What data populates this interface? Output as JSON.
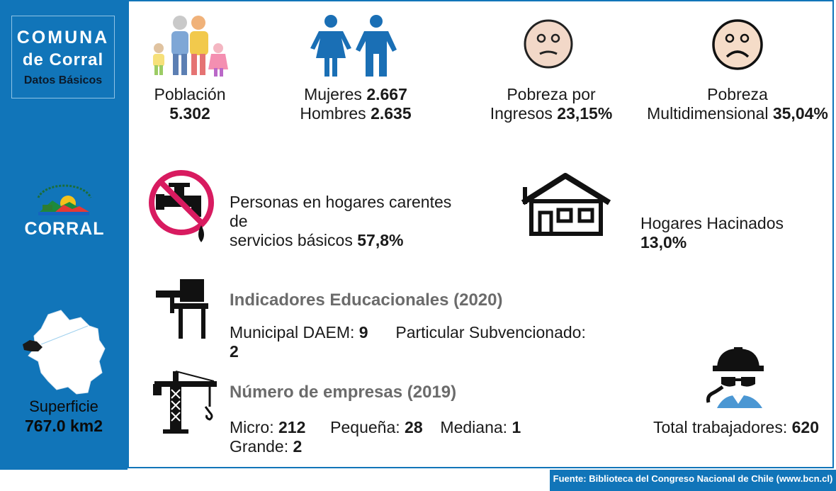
{
  "sidebar": {
    "title_line1": "COMUNA",
    "title_line2": "de Corral",
    "title_line3": "Datos Básicos",
    "logo_text": "CORRAL",
    "surface_label": "Superficie",
    "surface_value": "767.0 km2"
  },
  "stats": {
    "poblacion": {
      "label": "Población",
      "value": "5.302"
    },
    "mujeres": {
      "label": "Mujeres",
      "value": "2.667"
    },
    "hombres": {
      "label": "Hombres",
      "value": "2.635"
    },
    "pobreza_ingresos": {
      "label_line1": "Pobreza por",
      "label_line2": "Ingresos",
      "value": "23,15%"
    },
    "pobreza_multi": {
      "label_line1": "Pobreza",
      "label_line2": "Multidimensional",
      "value": "35,04%"
    },
    "servicios": {
      "label_line1": "Personas en hogares carentes de",
      "label_line2": "servicios básicos",
      "value": "57,8%"
    },
    "hacinados": {
      "label": "Hogares Hacinados",
      "value": "13,0%"
    }
  },
  "education": {
    "title": "Indicadores Educacionales (2020)",
    "municipal_label": "Municipal DAEM:",
    "municipal_value": "9",
    "particular_label": "Particular Subvencionado:",
    "particular_value": "2"
  },
  "companies": {
    "title": "Número de empresas (2019)",
    "micro_label": "Micro:",
    "micro_value": "212",
    "pequena_label": "Pequeña:",
    "pequena_value": "28",
    "mediana_label": "Mediana:",
    "mediana_value": "1",
    "grande_label": "Grande:",
    "grande_value": "2"
  },
  "workers": {
    "label": "Total trabajadores:",
    "value": "620"
  },
  "footer": {
    "source": "Fuente: Biblioteca del Congreso Nacional de Chile (www.bcn.cl)"
  },
  "colors": {
    "accent_blue": "#1175b9",
    "no_sign_red": "#d81b60",
    "gray_title": "#6b6b6b"
  },
  "icons": [
    "family-icon",
    "woman-icon",
    "man-icon",
    "sad-face-icon",
    "very-sad-face-icon",
    "no-water-icon",
    "house-icon",
    "school-desk-icon",
    "crane-icon",
    "worker-icon",
    "corral-logo-icon",
    "commune-map-icon"
  ]
}
